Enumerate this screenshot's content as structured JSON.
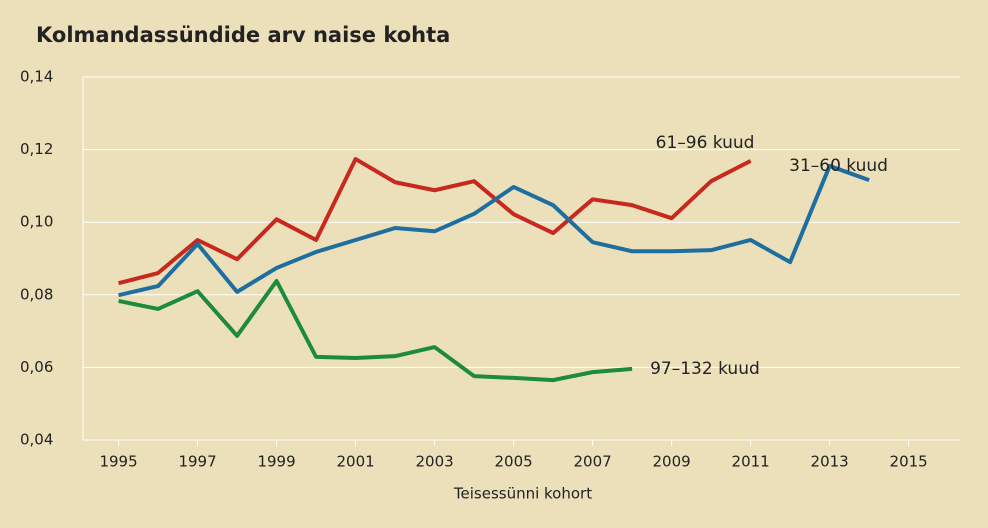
{
  "chart_data": {
    "type": "line",
    "title": "Kolmandassündide arv naise kohta",
    "x_label": "Teisessünni kohort",
    "x": [
      1995,
      1996,
      1997,
      1998,
      1999,
      2000,
      2001,
      2002,
      2003,
      2004,
      2005,
      2006,
      2007,
      2008,
      2009,
      2010,
      2011,
      2012,
      2013,
      2014
    ],
    "series": [
      {
        "name": "61–96 kuud",
        "color": "#c8281e",
        "values": [
          0.0832,
          0.086,
          0.0951,
          0.0898,
          0.1008,
          0.0951,
          0.1174,
          0.111,
          0.1088,
          0.1113,
          0.1022,
          0.097,
          0.1063,
          0.1047,
          0.1011,
          0.1113,
          0.1169,
          null,
          null,
          null
        ]
      },
      {
        "name": "31–60 kuud",
        "color": "#1f6ea0",
        "values": [
          0.0799,
          0.0824,
          0.094,
          0.0808,
          0.0874,
          0.0918,
          0.0951,
          0.0984,
          0.0975,
          0.1023,
          0.1097,
          0.1047,
          0.0945,
          0.092,
          0.092,
          0.0923,
          0.0951,
          0.089,
          0.1155,
          0.1116
        ]
      },
      {
        "name": "97–132 kuud",
        "color": "#1d8a3c",
        "values": [
          0.0783,
          0.0761,
          0.081,
          0.0687,
          0.0838,
          0.0629,
          0.0626,
          0.0631,
          0.0656,
          0.0576,
          0.0571,
          0.0565,
          0.0587,
          0.0596,
          null,
          null,
          null,
          null,
          null,
          null
        ]
      }
    ],
    "xlim": [
      1994.1,
      2016.3
    ],
    "xticks": [
      1995,
      1997,
      1999,
      2001,
      2003,
      2005,
      2007,
      2009,
      2011,
      2013,
      2015
    ],
    "ylim": [
      0.04,
      0.14
    ],
    "yticks": [
      {
        "value": 0.04,
        "label": "0,04"
      },
      {
        "value": 0.06,
        "label": "0,06"
      },
      {
        "value": 0.08,
        "label": "0,08"
      },
      {
        "value": 0.1,
        "label": "0,10"
      },
      {
        "value": 0.12,
        "label": "0,12"
      },
      {
        "value": 0.14,
        "label": "0,14"
      }
    ],
    "grid": true
  }
}
